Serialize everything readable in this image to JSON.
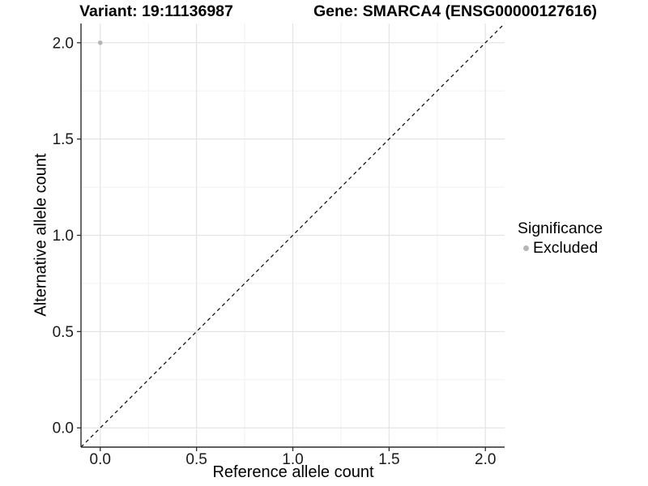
{
  "chart_data": {
    "type": "scatter",
    "title_left": "Variant: 19:11136987",
    "title_right": "Gene: SMARCA4 (ENSG00000127616)",
    "xlabel": "Reference allele count",
    "ylabel": "Alternative allele count",
    "xlim": [
      -0.1,
      2.1
    ],
    "ylim": [
      -0.1,
      2.1
    ],
    "grid": true,
    "x_ticks": {
      "values": [
        0,
        0.5,
        1,
        1.5,
        2
      ],
      "labels": [
        "0.0",
        "0.5",
        "1.0",
        "1.5",
        "2.0"
      ]
    },
    "y_ticks": {
      "values": [
        0,
        0.5,
        1,
        1.5,
        2
      ],
      "labels": [
        "0.0",
        "0.5",
        "1.0",
        "1.5",
        "2.0"
      ]
    },
    "x_minor_ticks": [
      0.25,
      0.75,
      1.25,
      1.75
    ],
    "y_minor_ticks": [
      0.25,
      0.75,
      1.25,
      1.75
    ],
    "points": [
      {
        "x": 0.0,
        "y": 2.0,
        "series": "Excluded"
      }
    ],
    "reference_line": {
      "type": "identity",
      "slope": 1,
      "intercept": 0,
      "style": "dashed",
      "color": "#000000"
    },
    "legend": {
      "title": "Significance",
      "position": "right",
      "items": [
        {
          "label": "Excluded",
          "color": "#b5b5b5",
          "marker": "circle"
        }
      ]
    },
    "colors": {
      "point_excluded": "#b5b5b5",
      "grid_major": "#e4e4e4",
      "grid_minor": "#f1f1f1",
      "axis_line": "#2b2b2b",
      "tick_text": "#1a1a1a",
      "background": "#ffffff"
    },
    "marker_radius_px": 2.8
  }
}
